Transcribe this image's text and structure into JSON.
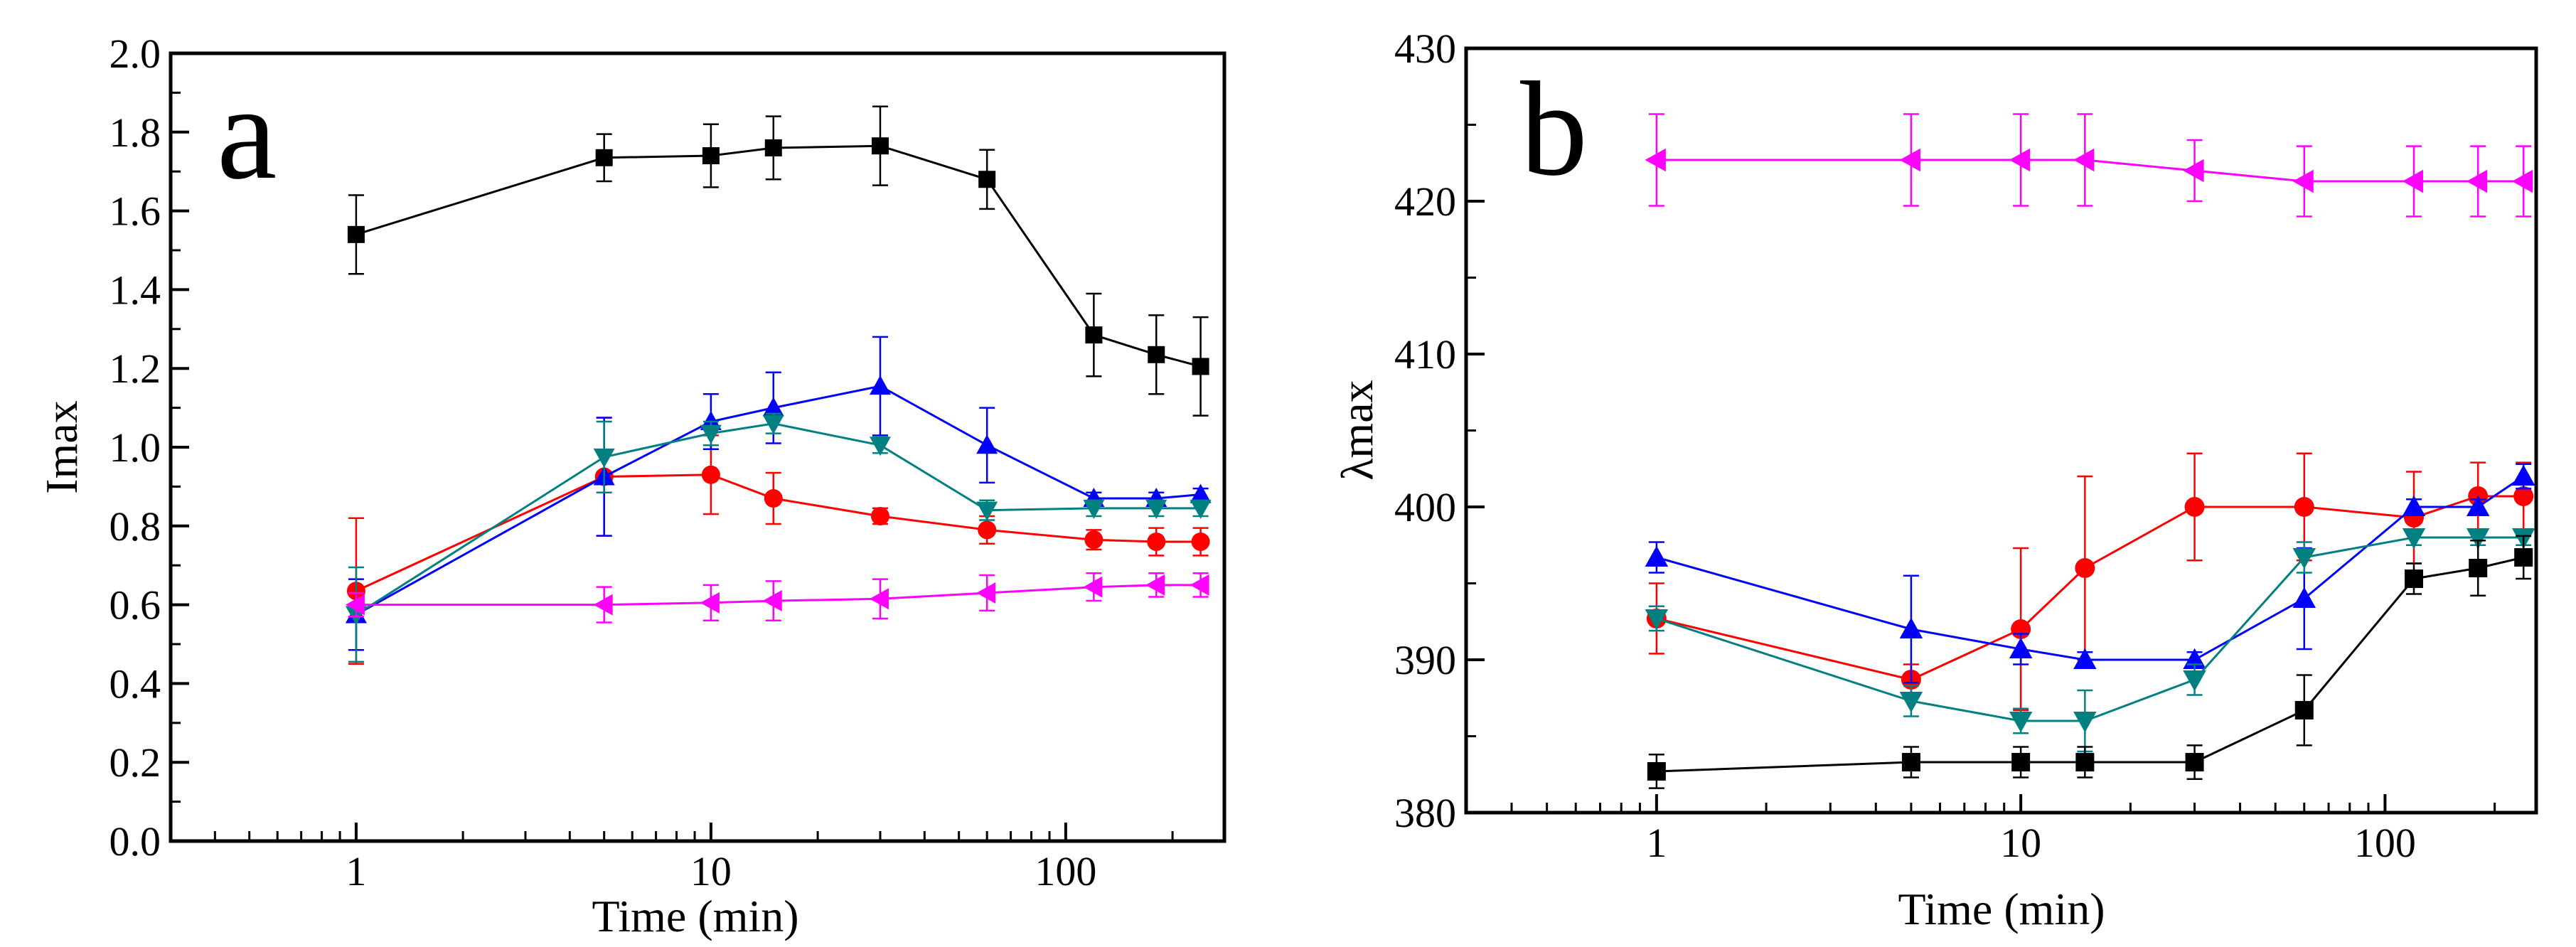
{
  "colors": {
    "black": "#000000",
    "red": "#ff0000",
    "blue": "#0000ff",
    "teal": "#008080",
    "magenta": "#ff00ff"
  },
  "chart_data": [
    {
      "type": "line",
      "panel_label": "a",
      "xlabel": "Time (min)",
      "ylabel": "Imax",
      "xscale": "log",
      "xlim": [
        0.3,
        280
      ],
      "ylim": [
        0.0,
        2.0
      ],
      "x_ticks": [
        1,
        10,
        100
      ],
      "x_tick_labels": [
        "1",
        "10",
        "100"
      ],
      "y_ticks": [
        0,
        0.2,
        0.4,
        0.6,
        0.8,
        1.0,
        1.2,
        1.4,
        1.6,
        1.8,
        2.0
      ],
      "y_tick_labels": [
        "0.0",
        "0.2",
        "0.4",
        "0.6",
        "0.8",
        "1.0",
        "1.2",
        "1.4",
        "1.6",
        "1.8",
        "2.0"
      ],
      "series": [
        {
          "name": "black squares",
          "color": "#000000",
          "marker": "square",
          "x": [
            1,
            5,
            10,
            15,
            30,
            60,
            120,
            180,
            240
          ],
          "y": [
            1.54,
            1.735,
            1.74,
            1.76,
            1.765,
            1.68,
            1.285,
            1.235,
            1.205
          ],
          "err": [
            0.1,
            0.06,
            0.08,
            0.08,
            0.1,
            0.075,
            0.105,
            0.1,
            0.125
          ]
        },
        {
          "name": "red circles",
          "color": "#ff0000",
          "marker": "circle",
          "x": [
            1,
            5,
            10,
            15,
            30,
            60,
            120,
            180,
            240
          ],
          "y": [
            0.635,
            0.925,
            0.93,
            0.87,
            0.825,
            0.79,
            0.765,
            0.76,
            0.76
          ],
          "err": [
            0.185,
            0.15,
            0.1,
            0.065,
            0.02,
            0.035,
            0.025,
            0.035,
            0.035
          ]
        },
        {
          "name": "blue up-triangles",
          "color": "#0000ff",
          "marker": "triangle-up",
          "x": [
            1,
            5,
            10,
            15,
            30,
            60,
            120,
            180,
            240
          ],
          "y": [
            0.575,
            0.925,
            1.065,
            1.1,
            1.155,
            1.005,
            0.87,
            0.87,
            0.88
          ],
          "err": [
            0.09,
            0.15,
            0.07,
            0.09,
            0.125,
            0.095,
            0.015,
            0.015,
            0.015
          ]
        },
        {
          "name": "teal down-triangles",
          "color": "#008080",
          "marker": "triangle-down",
          "x": [
            1,
            5,
            10,
            15,
            30,
            60,
            120,
            180,
            240
          ],
          "y": [
            0.575,
            0.975,
            1.035,
            1.06,
            1.005,
            0.84,
            0.845,
            0.845,
            0.845
          ],
          "err": [
            0.12,
            0.09,
            0.03,
            0.025,
            0.02,
            0.025,
            0.02,
            0.02,
            0.02
          ]
        },
        {
          "name": "magenta left-triangles",
          "color": "#ff00ff",
          "marker": "triangle-left",
          "x": [
            1,
            5,
            10,
            15,
            30,
            60,
            120,
            180,
            240
          ],
          "y": [
            0.6,
            0.6,
            0.605,
            0.61,
            0.615,
            0.63,
            0.645,
            0.65,
            0.65
          ],
          "err": [
            0.03,
            0.045,
            0.045,
            0.05,
            0.05,
            0.045,
            0.035,
            0.03,
            0.03
          ]
        }
      ]
    },
    {
      "type": "line",
      "panel_label": "b",
      "xlabel": "Time (min)",
      "ylabel": "λmax",
      "xscale": "log",
      "xlim": [
        0.3,
        260
      ],
      "ylim": [
        380,
        430
      ],
      "x_ticks": [
        1,
        10,
        100
      ],
      "x_tick_labels": [
        "1",
        "10",
        "100"
      ],
      "y_ticks": [
        380,
        390,
        400,
        410,
        420,
        430
      ],
      "y_tick_labels": [
        "380",
        "390",
        "400",
        "410",
        "420",
        "430"
      ],
      "series": [
        {
          "name": "magenta left-triangles",
          "color": "#ff00ff",
          "marker": "triangle-left",
          "x": [
            1,
            5,
            10,
            15,
            30,
            60,
            120,
            180,
            240
          ],
          "y": [
            422.7,
            422.7,
            422.7,
            422.7,
            422,
            421.3,
            421.3,
            421.3,
            421.3
          ],
          "err": [
            3,
            3,
            3,
            3,
            2,
            2.3,
            2.3,
            2.3,
            2.3
          ]
        },
        {
          "name": "red circles",
          "color": "#ff0000",
          "marker": "circle",
          "x": [
            1,
            5,
            10,
            15,
            30,
            60,
            120,
            180,
            240
          ],
          "y": [
            392.7,
            388.7,
            392,
            396,
            400,
            400,
            399.3,
            400.7,
            400.7
          ],
          "err": [
            2.3,
            1,
            5.3,
            6,
            3.5,
            3.5,
            3,
            2.2,
            2.2
          ]
        },
        {
          "name": "blue up-triangles",
          "color": "#0000ff",
          "marker": "triangle-up",
          "x": [
            1,
            5,
            10,
            15,
            30,
            60,
            120,
            180,
            240
          ],
          "y": [
            396.7,
            392,
            390.7,
            390,
            390,
            394,
            400,
            400,
            402
          ],
          "err": [
            1,
            3.5,
            1,
            0.5,
            0.5,
            3.3,
            0.5,
            0.5,
            0.8
          ]
        },
        {
          "name": "teal down-triangles",
          "color": "#008080",
          "marker": "triangle-down",
          "x": [
            1,
            5,
            10,
            15,
            30,
            60,
            120,
            180,
            240
          ],
          "y": [
            392.7,
            387.3,
            386,
            386,
            388.7,
            396.7,
            398,
            398,
            398
          ],
          "err": [
            0.8,
            1,
            0.8,
            2,
            1,
            1,
            0.5,
            0.5,
            0.5
          ]
        },
        {
          "name": "black squares",
          "color": "#000000",
          "marker": "square",
          "x": [
            1,
            5,
            10,
            15,
            30,
            60,
            120,
            180,
            240
          ],
          "y": [
            382.7,
            383.3,
            383.3,
            383.3,
            383.3,
            386.7,
            395.3,
            396,
            396.7
          ],
          "err": [
            1.1,
            1,
            1,
            1,
            1.1,
            2.3,
            1,
            1.8,
            1.4
          ]
        }
      ]
    }
  ]
}
